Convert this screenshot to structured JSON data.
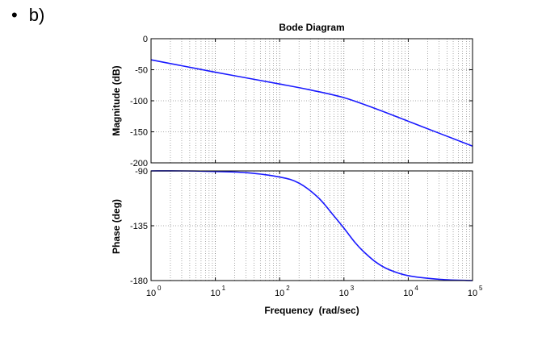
{
  "slide": {
    "bullet_symbol": "•",
    "bullet_label": "b)"
  },
  "chart_data": {
    "type": "line",
    "title": "Bode Diagram",
    "xlabel": "Frequency  (rad/sec)",
    "x_scale": "log",
    "xlim": [
      1,
      100000
    ],
    "x_tick_bases": [
      "10",
      "10",
      "10",
      "10",
      "10",
      "10"
    ],
    "x_tick_exponents": [
      "0",
      "1",
      "2",
      "3",
      "4",
      "5"
    ],
    "grid": true,
    "line_color": "#1a1aff",
    "panels": [
      {
        "name": "magnitude",
        "ylabel": "Magnitude (dB)",
        "ylim": [
          -200,
          0
        ],
        "y_ticks": [
          "0",
          "-50",
          "-100",
          "-150",
          "-200"
        ],
        "series": [
          {
            "x": [
              1,
              3.16,
              10,
              31.6,
              100,
              316,
              1000,
              3160,
              10000,
              31600,
              100000
            ],
            "y": [
              -34,
              -44,
              -54,
              -63.5,
              -73,
              -83,
              -95,
              -113,
              -133,
              -153,
              -173
            ]
          }
        ]
      },
      {
        "name": "phase",
        "ylabel": "Phase (deg)",
        "ylim": [
          -180,
          -90
        ],
        "y_ticks": [
          "-90",
          "-135",
          "-180"
        ],
        "series": [
          {
            "x": [
              1,
              3.16,
              10,
              31.6,
              100,
              200,
              400,
              700,
              1000,
              1500,
              2000,
              3160,
              5000,
              10000,
              31600,
              100000
            ],
            "y": [
              -90,
              -90,
              -90.5,
              -91.5,
              -95,
              -100,
              -112,
              -127,
              -137,
              -149,
              -156,
              -165,
              -171,
              -176,
              -179,
              -180
            ]
          }
        ]
      }
    ]
  }
}
